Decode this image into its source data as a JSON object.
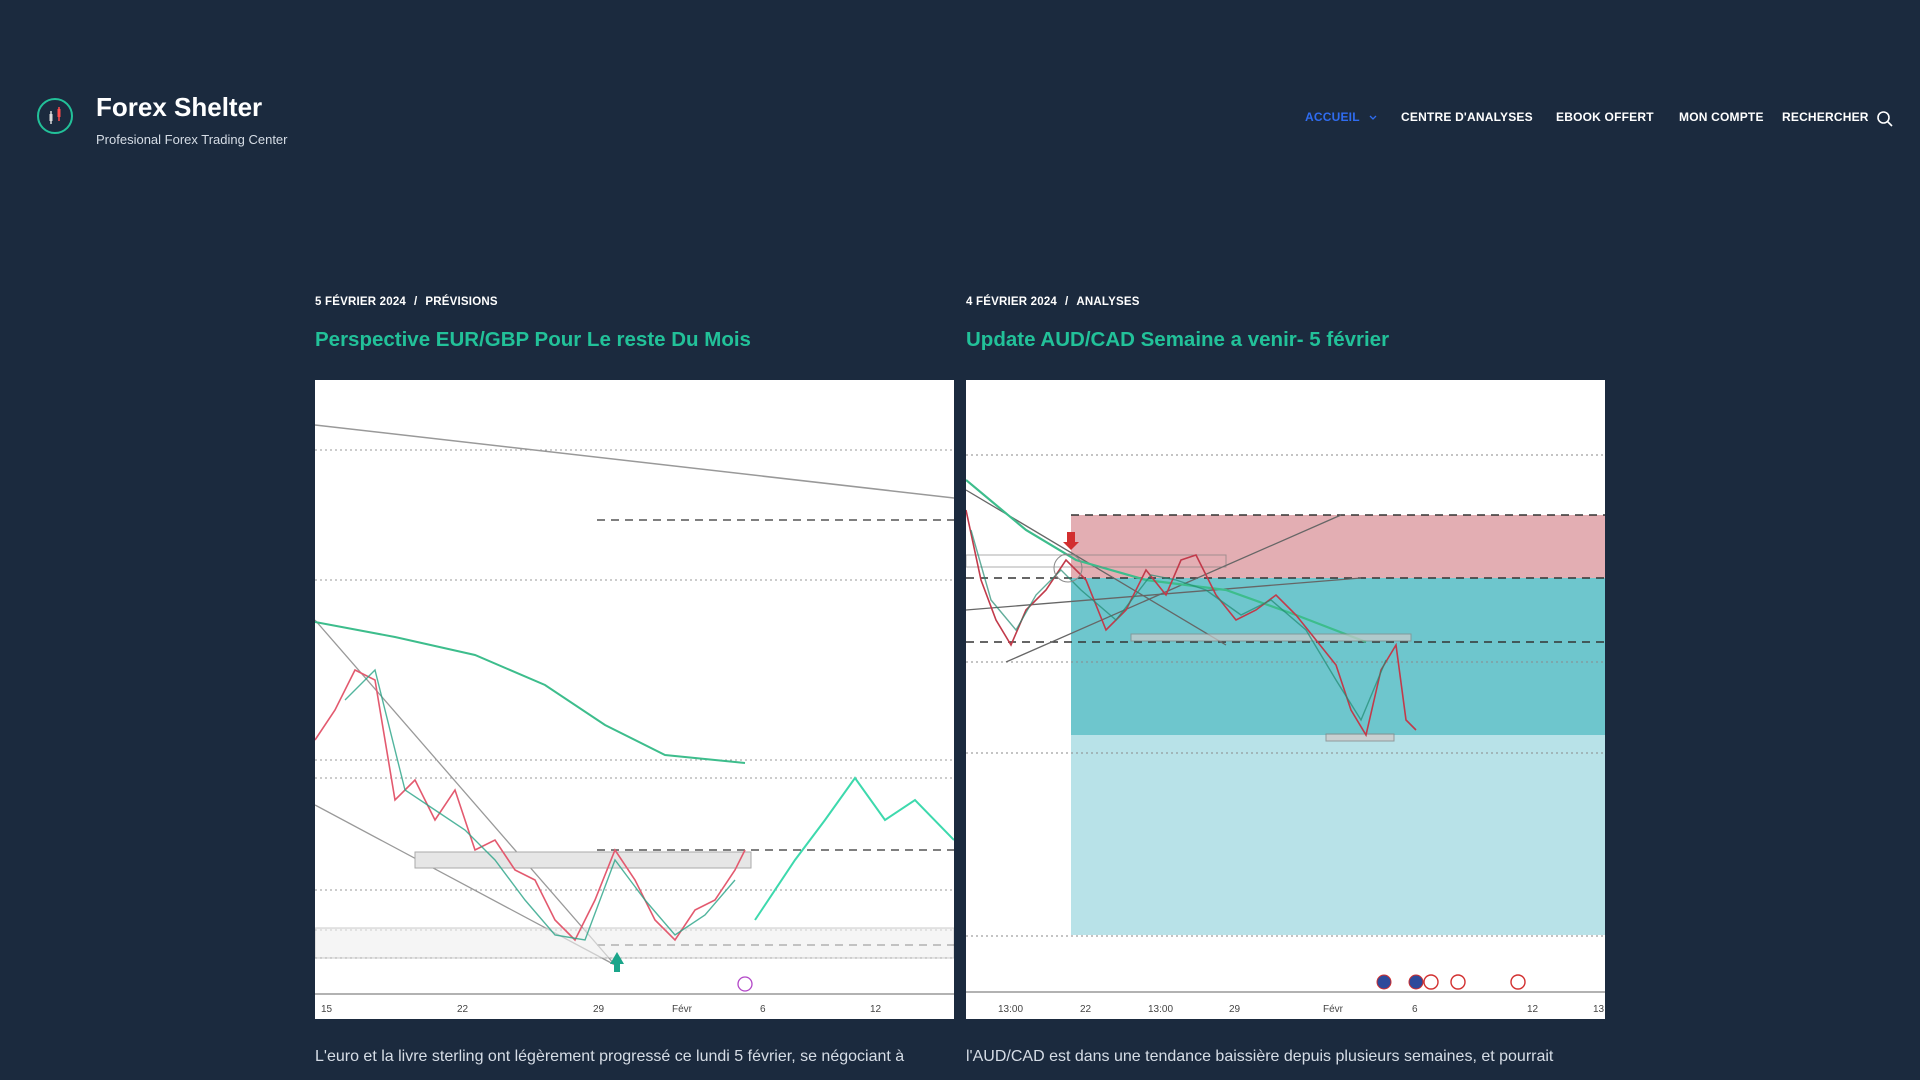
{
  "site": {
    "title": "Forex Shelter",
    "tagline": "Profesional Forex Trading Center"
  },
  "nav": {
    "items": [
      {
        "label": "ACCUEIL",
        "active": true,
        "has_dropdown": true
      },
      {
        "label": "CENTRE D'ANALYSES",
        "active": false
      },
      {
        "label": "EBOOK OFFERT",
        "active": false
      },
      {
        "label": "MON COMPTE",
        "active": false
      },
      {
        "label": "RECHERCHER",
        "active": false,
        "icon": "search-icon"
      }
    ]
  },
  "posts": [
    {
      "date": "5 FÉVRIER 2024",
      "category": "PRÉVISIONS",
      "title": "Perspective EUR/GBP Pour Le reste Du Mois",
      "chart_x_labels": [
        "15",
        "22",
        "29",
        "Févr",
        "6",
        "12"
      ],
      "excerpt": "L'euro et la livre sterling ont légèrement progressé ce lundi 5 février, se négociant à"
    },
    {
      "date": "4 FÉVRIER 2024",
      "category": "ANALYSES",
      "title": "Update AUD/CAD Semaine a venir- 5 février",
      "chart_x_labels": [
        "13:00",
        "22",
        "13:00",
        "29",
        "Févr",
        "6",
        "12",
        "13"
      ],
      "excerpt": "l'AUD/CAD est dans une tendance baissière depuis plusieurs semaines, et pourrait"
    }
  ],
  "colors": {
    "background": "#1b2a3e",
    "accent_green": "#22c199",
    "nav_active": "#2f6cf0"
  }
}
